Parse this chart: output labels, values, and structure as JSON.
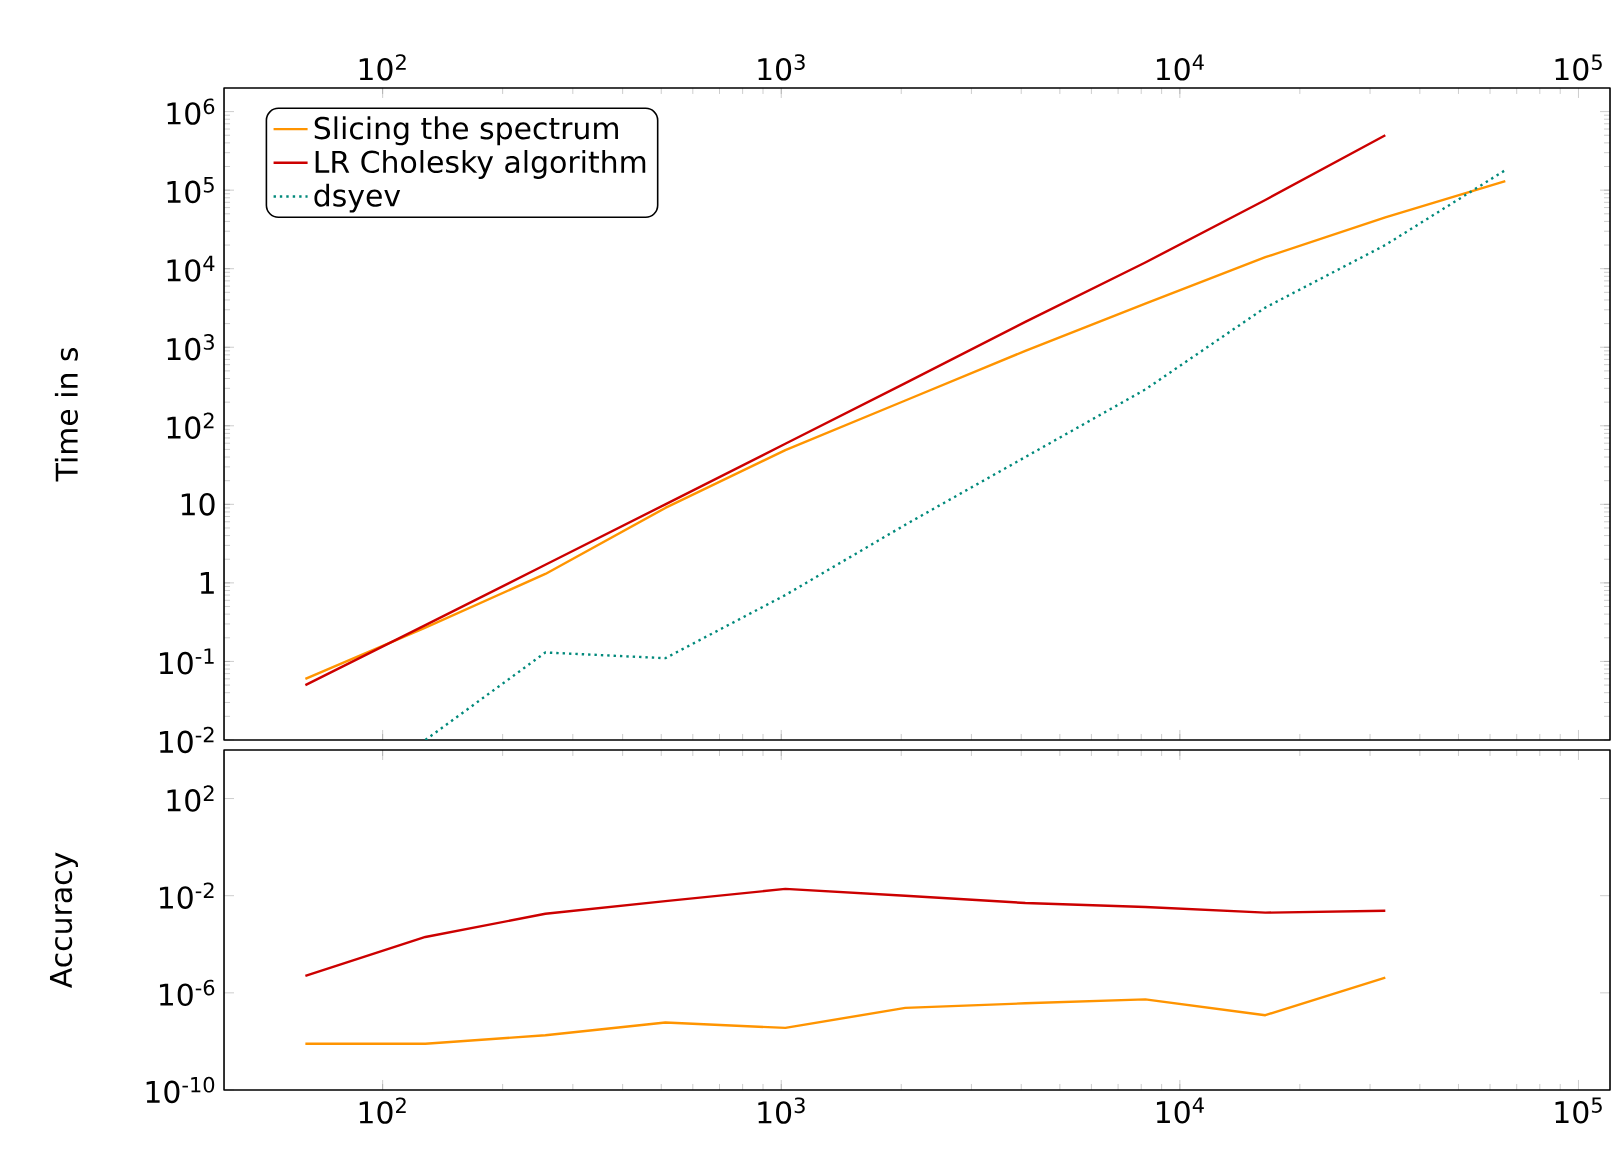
{
  "chart_data": [
    {
      "type": "line",
      "ylabel": "Time in s",
      "log": "xy",
      "legend": "top left",
      "x": [
        64,
        128,
        256,
        512,
        1024,
        2048,
        4096,
        8192,
        16384,
        32768,
        65536
      ],
      "xlim": [
        40,
        120000
      ],
      "xticks": [
        {
          "value": 100,
          "label": "10$^{2}$"
        },
        {
          "value": 1000,
          "label": "10$^{3}$"
        },
        {
          "value": 10000,
          "label": "10$^{4}$"
        },
        {
          "value": 100000,
          "label": "10$^{5}$"
        }
      ],
      "ylim": [
        0.01,
        2000000
      ],
      "yticks": [
        {
          "value": 0.01,
          "label": "10$^{-2}$"
        },
        {
          "value": 0.1,
          "label": "10$^{-1}$"
        },
        1,
        10,
        {
          "value": 100,
          "label": "10$^{2}$"
        },
        {
          "value": 1000,
          "label": "10$^{3}$"
        },
        {
          "value": 10000,
          "label": "10$^{4}$"
        },
        {
          "value": 100000,
          "label": "10$^{5}$"
        },
        {
          "value": 1000000,
          "label": "10$^{6}$"
        }
      ],
      "series": [
        {
          "name": "Slicing the spectrum",
          "color": "#ff9400",
          "line_style": "solid",
          "values": [
            0.06,
            0.27,
            1.3,
            9,
            49,
            210,
            900,
            3600,
            14000,
            45000,
            130000
          ]
        },
        {
          "name": "LR Cholesky algorithm",
          "color": "#cc0000",
          "line_style": "solid",
          "values": [
            0.05,
            0.29,
            1.7,
            10,
            59,
            350,
            2100,
            12000,
            75000,
            500000,
            null
          ]
        },
        {
          "name": "dsyev",
          "color": "#00897b",
          "line_style": "dotted",
          "values": [
            null,
            0.01,
            0.13,
            0.11,
            0.7,
            5.5,
            40,
            290,
            3200,
            20000,
            180000
          ]
        }
      ]
    },
    {
      "type": "line",
      "ylabel": "Accuracy",
      "log": "xy",
      "x": [
        64,
        128,
        256,
        512,
        1024,
        2048,
        4096,
        8192,
        16384,
        32768
      ],
      "xlim": [
        40,
        120000
      ],
      "xticks": [
        {
          "value": 100,
          "label": "10$^{2}$"
        },
        {
          "value": 1000,
          "label": "10$^{3}$"
        },
        {
          "value": 10000,
          "label": "10$^{4}$"
        },
        {
          "value": 100000,
          "label": "10$^{5}$"
        }
      ],
      "ylim": [
        1e-10,
        10000
      ],
      "yticks": [
        {
          "value": 1e-10,
          "label": "10$^{-10}$"
        },
        {
          "value": 1e-06,
          "label": "10$^{-6}$"
        },
        {
          "value": 0.01,
          "label": "10$^{-2}$"
        },
        {
          "value": 100,
          "label": "10$^{2}$"
        }
      ],
      "series": [
        {
          "color": "#ff9400",
          "line_style": "solid",
          "values": [
            8e-09,
            8e-09,
            1.8e-08,
            6e-08,
            3.6e-08,
            2.4e-07,
            3.7e-07,
            5.4e-07,
            1.2e-07,
            4.2e-06
          ]
        },
        {
          "color": "#cc0000",
          "line_style": "solid",
          "values": [
            5e-06,
            0.0002,
            0.0018,
            0.006,
            0.019,
            0.01,
            0.005,
            0.0034,
            0.002,
            0.0024
          ]
        }
      ]
    }
  ]
}
